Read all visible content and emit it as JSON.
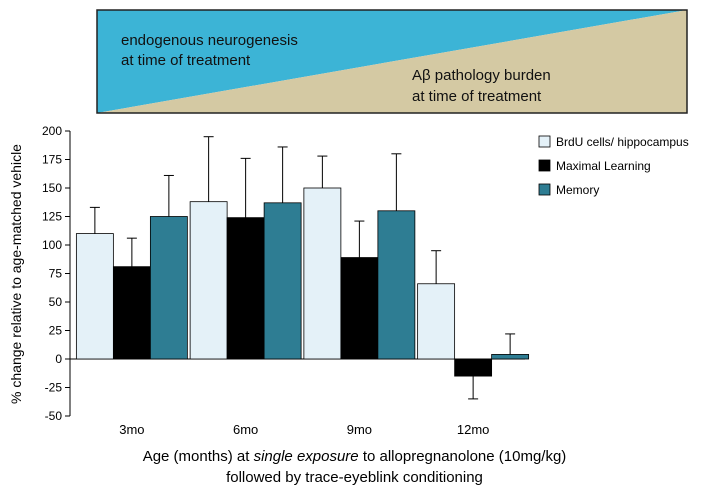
{
  "banner": {
    "left_line1": "endogenous neurogenesis",
    "left_line2": "at time of treatment",
    "right_line1": "Aβ pathology burden",
    "right_line2": "at time of treatment",
    "colors": {
      "blue": "#3cb4d6",
      "tan": "#d4c9a3",
      "border": "#222222"
    }
  },
  "chart_data": {
    "type": "bar",
    "categories": [
      "3mo",
      "6mo",
      "9mo",
      "12mo"
    ],
    "series": [
      {
        "name": "BrdU cells/ hippocampus",
        "color": "#e4f1f8",
        "values": [
          110,
          138,
          150,
          66
        ],
        "errors": [
          23,
          57,
          28,
          29
        ]
      },
      {
        "name": "Maximal Learning",
        "color": "#000000",
        "values": [
          81,
          124,
          89,
          -15
        ],
        "errors": [
          25,
          52,
          32,
          20
        ]
      },
      {
        "name": "Memory",
        "color": "#2e7d93",
        "values": [
          125,
          137,
          130,
          4
        ],
        "errors": [
          36,
          49,
          50,
          18
        ]
      }
    ],
    "ylabel": "% change relative to age-matched vehicle",
    "ylim": [
      -50,
      200
    ],
    "yticks": [
      -50,
      -25,
      0,
      25,
      50,
      75,
      100,
      125,
      150,
      175,
      200
    ],
    "xlabel_pre": "Age (months) at ",
    "xlabel_em": "single exposure",
    "xlabel_post": " to allopregnanolone (10mg/kg)",
    "xlabel_line2": "followed by trace-eyeblink conditioning"
  }
}
